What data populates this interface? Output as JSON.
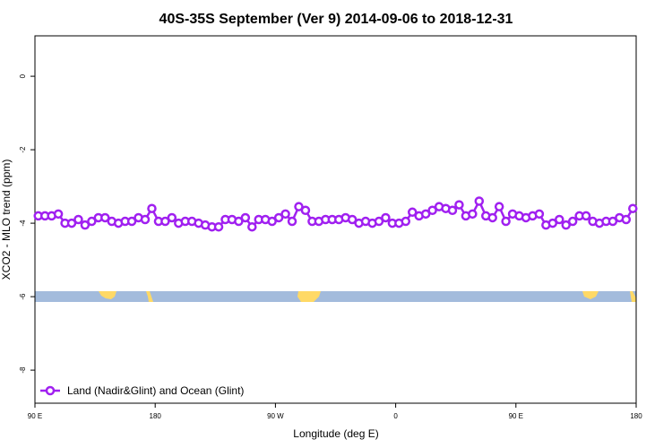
{
  "chart_data": {
    "type": "line",
    "title": "40S-35S September (Ver 9)   2014-09-06 to 2018-12-31",
    "x_label": "Longitude (deg E)",
    "y_label": "XCO2 - MLO trend (ppm)",
    "xlim": [
      90,
      540
    ],
    "ylim": [
      1.1,
      -8.9
    ],
    "xticks": [
      {
        "value": 90,
        "label": "90 E"
      },
      180,
      {
        "value": 270,
        "label": "90 W"
      },
      {
        "value": 360,
        "label": "0"
      },
      {
        "value": 450,
        "label": "90 E"
      },
      {
        "value": 540,
        "label": "180"
      }
    ],
    "yticks": [
      0,
      -2,
      -4,
      -6,
      -8
    ],
    "legend": "bottom-left",
    "series": [
      {
        "name": "Land (Nadir&Glint) and Ocean (Glint)",
        "color": "#a020f0",
        "x": [
          92.5,
          97.5,
          102.5,
          107.5,
          112.5,
          117.5,
          122.5,
          127.5,
          132.5,
          137.5,
          142.5,
          147.5,
          152.5,
          157.5,
          162.5,
          167.5,
          172.5,
          177.5,
          182.5,
          187.5,
          192.5,
          197.5,
          202.5,
          207.5,
          212.5,
          217.5,
          222.5,
          227.5,
          232.5,
          237.5,
          242.5,
          247.5,
          252.5,
          257.5,
          262.5,
          267.5,
          272.5,
          277.5,
          282.5,
          287.5,
          292.5,
          297.5,
          302.5,
          307.5,
          312.5,
          317.5,
          322.5,
          327.5,
          332.5,
          337.5,
          342.5,
          347.5,
          352.5,
          357.5,
          362.5,
          367.5,
          372.5,
          377.5,
          382.5,
          387.5,
          392.5,
          397.5,
          402.5,
          407.5,
          412.5,
          417.5,
          422.5,
          427.5,
          432.5,
          437.5,
          442.5,
          447.5,
          452.5,
          457.5,
          462.5,
          467.5,
          472.5,
          477.5,
          482.5,
          487.5,
          492.5,
          497.5,
          502.5,
          507.5,
          512.5,
          517.5,
          522.5,
          527.5,
          532.5,
          537.5
        ],
        "values": [
          -3.8,
          -3.8,
          -3.8,
          -3.75,
          -4.0,
          -4.0,
          -3.9,
          -4.05,
          -3.95,
          -3.85,
          -3.85,
          -3.95,
          -4.0,
          -3.95,
          -3.95,
          -3.85,
          -3.9,
          -3.6,
          -3.95,
          -3.95,
          -3.85,
          -4.0,
          -3.95,
          -3.95,
          -4.0,
          -4.05,
          -4.1,
          -4.1,
          -3.9,
          -3.9,
          -3.95,
          -3.85,
          -4.1,
          -3.9,
          -3.9,
          -3.95,
          -3.85,
          -3.75,
          -3.95,
          -3.55,
          -3.65,
          -3.95,
          -3.95,
          -3.9,
          -3.9,
          -3.9,
          -3.85,
          -3.9,
          -4.0,
          -3.95,
          -4.0,
          -3.95,
          -3.85,
          -4.0,
          -4.0,
          -3.95,
          -3.7,
          -3.8,
          -3.75,
          -3.65,
          -3.55,
          -3.6,
          -3.65,
          -3.5,
          -3.8,
          -3.75,
          -3.4,
          -3.8,
          -3.85,
          -3.55,
          -3.95,
          -3.75,
          -3.8,
          -3.85,
          -3.8,
          -3.75,
          -4.05,
          -4.0,
          -3.9,
          -4.05,
          -3.95,
          -3.8,
          -3.8,
          -3.95,
          -4.0,
          -3.95,
          -3.95,
          -3.85,
          -3.9,
          -3.6
        ]
      }
    ]
  }
}
